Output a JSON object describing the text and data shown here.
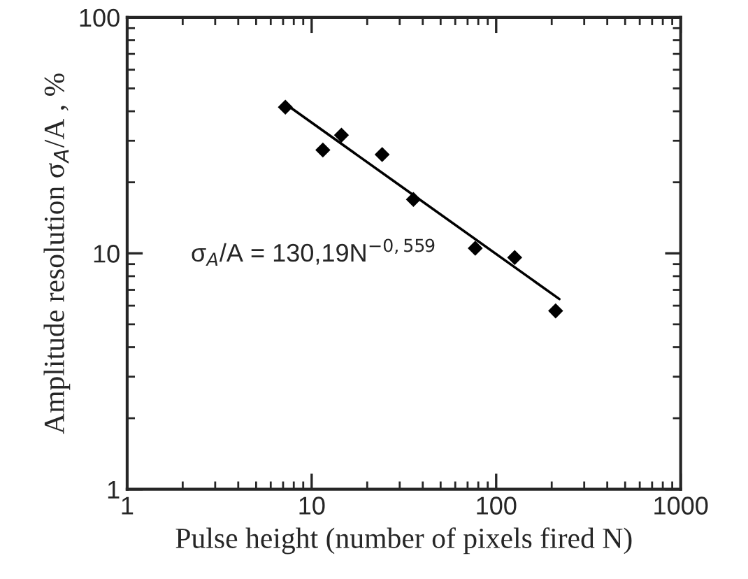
{
  "chart_data": {
    "type": "scatter",
    "xlabel": "Pulse height (number of pixels fired N)",
    "ylabel": "Amplitude resolution σ$_{A}$/A , %",
    "series": [
      {
        "color": "#000000",
        "marker": "diamond",
        "x": [
          7.2,
          11.5,
          14.5,
          24.1,
          35.6,
          77,
          126,
          210
        ],
        "values": [
          41.6,
          27.4,
          31.7,
          26.2,
          16.9,
          10.5,
          9.6,
          5.7
        ]
      },
      {
        "type": "line",
        "color": "#000000",
        "marker": "none",
        "line_style": "solid",
        "x": [
          7.2,
          220
        ],
        "values": [
          43,
          6.4
        ]
      }
    ],
    "annotations": [
      "σ$_{A}$/A = 130,19N$^{−0,559}$"
    ],
    "log": "xy",
    "xlim": [
      1,
      1000
    ],
    "ylim": [
      1,
      100
    ],
    "xticks": [
      1,
      10,
      100,
      1000
    ],
    "yticks": [
      1,
      10,
      100
    ],
    "grid": false,
    "legend": false
  }
}
